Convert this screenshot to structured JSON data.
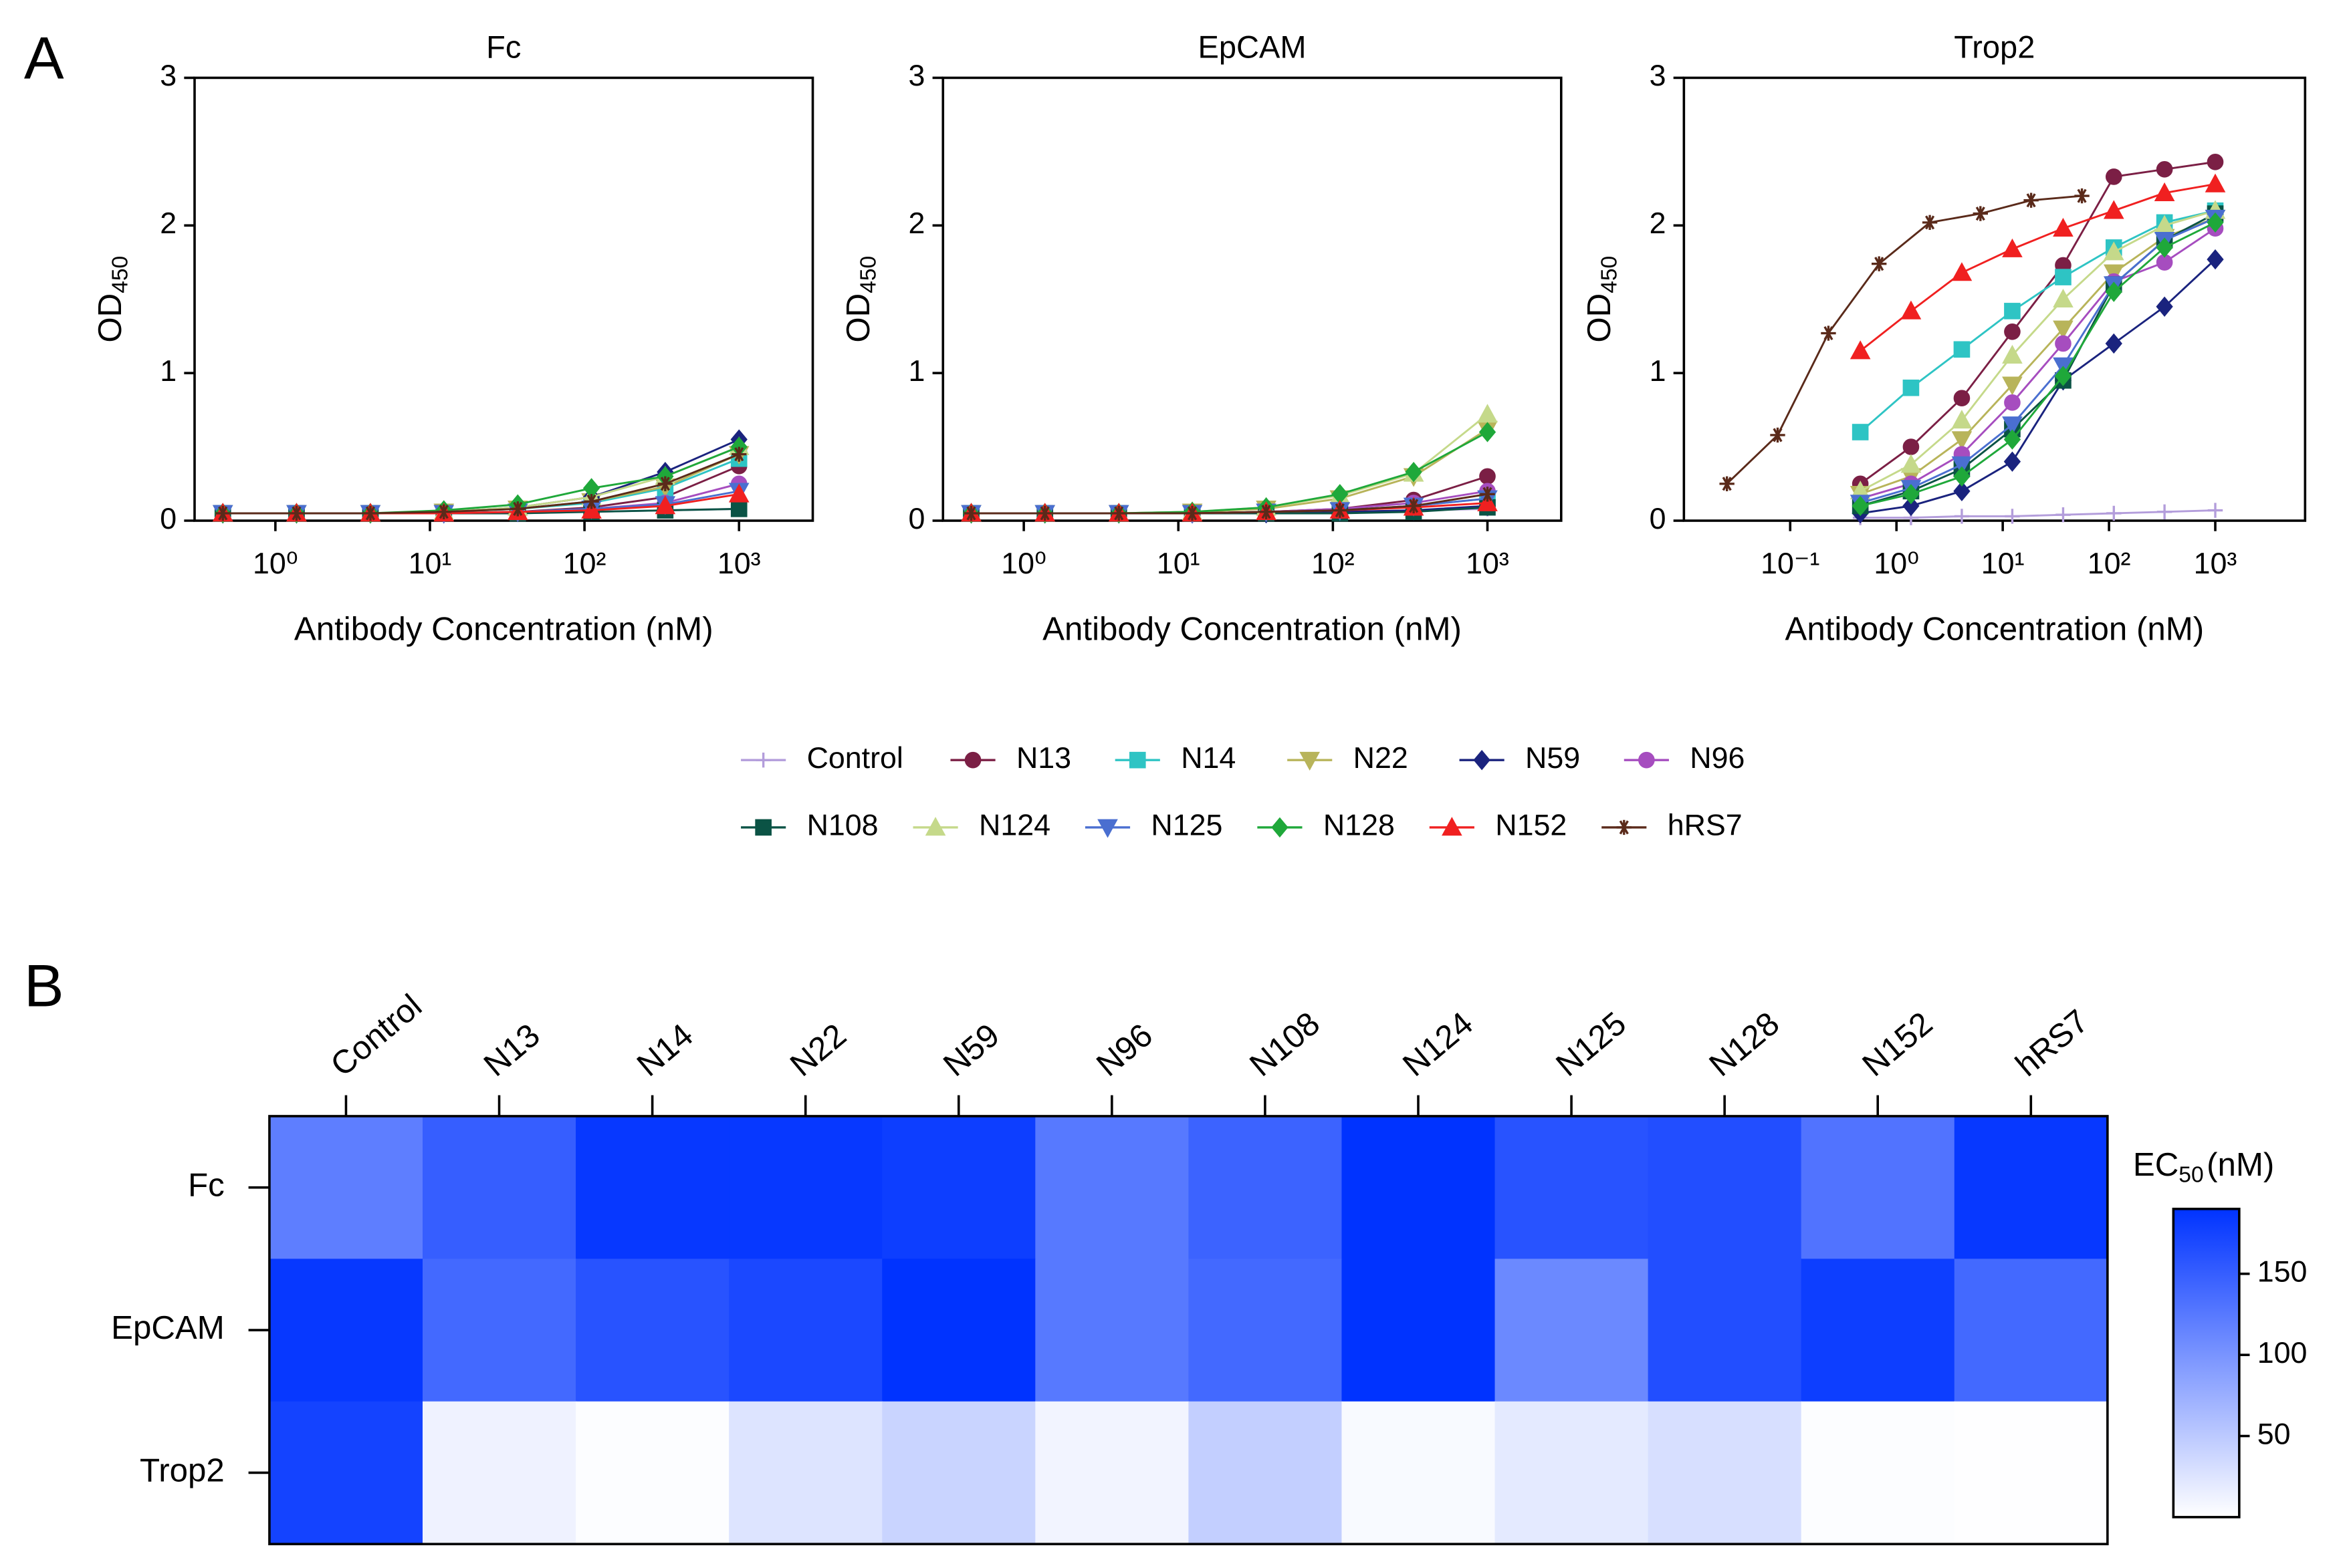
{
  "chart_data": [
    {
      "type": "line",
      "panel_label": "A",
      "title": "Fc",
      "x_label": "Antibody Concentration (nM)",
      "y_label": "OD",
      "y_label_sub": "450",
      "log_x": true,
      "x": [
        0.457,
        1.37,
        4.12,
        12.3,
        37,
        111,
        333,
        1000
      ],
      "xlim": [
        0.3,
        3000
      ],
      "xticks": [
        {
          "value": 1,
          "label": "10⁰"
        },
        {
          "value": 10,
          "label": "10¹"
        },
        {
          "value": 100,
          "label": "10²"
        },
        {
          "value": 1000,
          "label": "10³"
        }
      ],
      "ylim": [
        0,
        3
      ],
      "yticks": [
        0,
        1,
        2,
        3
      ],
      "series": [
        {
          "name": "Control",
          "color": "#b39ddb",
          "marker": "plus",
          "values": [
            0.05,
            0.05,
            0.05,
            0.05,
            0.05,
            0.06,
            0.07,
            0.08
          ]
        },
        {
          "name": "N13",
          "color": "#7b1f45",
          "marker": "circle",
          "values": [
            0.05,
            0.05,
            0.05,
            0.05,
            0.06,
            0.09,
            0.16,
            0.37
          ]
        },
        {
          "name": "N14",
          "color": "#2ec4c4",
          "marker": "square",
          "values": [
            0.05,
            0.05,
            0.05,
            0.06,
            0.08,
            0.12,
            0.22,
            0.42
          ]
        },
        {
          "name": "N22",
          "color": "#b8b45a",
          "marker": "triangle-down",
          "values": [
            0.05,
            0.05,
            0.05,
            0.06,
            0.08,
            0.13,
            0.23,
            0.45
          ]
        },
        {
          "name": "N59",
          "color": "#1a237e",
          "marker": "diamond",
          "values": [
            0.05,
            0.05,
            0.05,
            0.06,
            0.09,
            0.16,
            0.33,
            0.55
          ]
        },
        {
          "name": "N96",
          "color": "#a64dbf",
          "marker": "circle",
          "values": [
            0.05,
            0.05,
            0.05,
            0.05,
            0.06,
            0.08,
            0.12,
            0.25
          ]
        },
        {
          "name": "N108",
          "color": "#0b5345",
          "marker": "square",
          "values": [
            0.05,
            0.05,
            0.05,
            0.05,
            0.05,
            0.06,
            0.07,
            0.08
          ]
        },
        {
          "name": "N124",
          "color": "#c5d98a",
          "marker": "triangle-up",
          "values": [
            0.05,
            0.05,
            0.05,
            0.06,
            0.09,
            0.16,
            0.3,
            0.5
          ]
        },
        {
          "name": "N125",
          "color": "#4a6fd0",
          "marker": "triangle-down",
          "values": [
            0.05,
            0.05,
            0.05,
            0.05,
            0.06,
            0.08,
            0.11,
            0.2
          ]
        },
        {
          "name": "N128",
          "color": "#1fa83a",
          "marker": "diamond",
          "values": [
            0.05,
            0.05,
            0.05,
            0.07,
            0.11,
            0.22,
            0.3,
            0.5
          ]
        },
        {
          "name": "N152",
          "color": "#f02020",
          "marker": "triangle-up",
          "values": [
            0.05,
            0.05,
            0.05,
            0.05,
            0.06,
            0.07,
            0.1,
            0.18
          ]
        },
        {
          "name": "hRS7",
          "color": "#5a2a1a",
          "marker": "star",
          "values": [
            0.05,
            0.05,
            0.05,
            0.06,
            0.08,
            0.13,
            0.25,
            0.45
          ]
        }
      ]
    },
    {
      "type": "line",
      "title": "EpCAM",
      "x_label": "Antibody Concentration (nM)",
      "y_label": "OD",
      "y_label_sub": "450",
      "log_x": true,
      "x": [
        0.457,
        1.37,
        4.12,
        12.3,
        37,
        111,
        333,
        1000
      ],
      "xlim": [
        0.3,
        3000
      ],
      "xticks": [
        {
          "value": 1,
          "label": "10⁰"
        },
        {
          "value": 10,
          "label": "10¹"
        },
        {
          "value": 100,
          "label": "10²"
        },
        {
          "value": 1000,
          "label": "10³"
        }
      ],
      "ylim": [
        0,
        3
      ],
      "yticks": [
        0,
        1,
        2,
        3
      ],
      "series": [
        {
          "values": [
            0.05,
            0.05,
            0.05,
            0.05,
            0.05,
            0.06,
            0.07,
            0.08
          ]
        },
        {
          "values": [
            0.05,
            0.05,
            0.05,
            0.05,
            0.06,
            0.08,
            0.14,
            0.3
          ]
        },
        {
          "values": [
            0.05,
            0.05,
            0.05,
            0.05,
            0.06,
            0.07,
            0.1,
            0.15
          ]
        },
        {
          "values": [
            0.05,
            0.05,
            0.05,
            0.06,
            0.08,
            0.15,
            0.3,
            0.62
          ]
        },
        {
          "values": [
            0.05,
            0.05,
            0.05,
            0.05,
            0.05,
            0.06,
            0.07,
            0.1
          ]
        },
        {
          "values": [
            0.05,
            0.05,
            0.05,
            0.05,
            0.06,
            0.08,
            0.12,
            0.2
          ]
        },
        {
          "values": [
            0.05,
            0.05,
            0.05,
            0.05,
            0.05,
            0.05,
            0.06,
            0.09
          ]
        },
        {
          "values": [
            0.05,
            0.05,
            0.05,
            0.06,
            0.09,
            0.17,
            0.32,
            0.72
          ]
        },
        {
          "values": [
            0.05,
            0.05,
            0.05,
            0.05,
            0.06,
            0.07,
            0.1,
            0.15
          ]
        },
        {
          "values": [
            0.05,
            0.05,
            0.05,
            0.06,
            0.09,
            0.18,
            0.33,
            0.6
          ]
        },
        {
          "values": [
            0.05,
            0.05,
            0.05,
            0.05,
            0.06,
            0.07,
            0.09,
            0.12
          ]
        },
        {
          "values": [
            0.05,
            0.05,
            0.05,
            0.05,
            0.06,
            0.07,
            0.1,
            0.18
          ]
        }
      ]
    },
    {
      "type": "line",
      "title": "Trop2",
      "x_label": "Antibody Concentration (nM)",
      "y_label": "OD",
      "y_label_sub": "450",
      "log_x": true,
      "x": [
        0.457,
        1.37,
        4.12,
        12.3,
        37,
        111,
        333,
        1000
      ],
      "xlim": [
        0.01,
        7000
      ],
      "xticks": [
        {
          "value": 0.1,
          "label": "10⁻¹"
        },
        {
          "value": 1,
          "label": "10⁰"
        },
        {
          "value": 10,
          "label": "10¹"
        },
        {
          "value": 100,
          "label": "10²"
        },
        {
          "value": 1000,
          "label": "10³"
        }
      ],
      "ylim": [
        0,
        3
      ],
      "yticks": [
        0,
        1,
        2,
        3
      ],
      "series": [
        {
          "values": [
            0.02,
            0.02,
            0.03,
            0.03,
            0.04,
            0.05,
            0.06,
            0.07
          ]
        },
        {
          "values": [
            0.25,
            0.5,
            0.83,
            1.28,
            1.73,
            2.33,
            2.38,
            2.43
          ]
        },
        {
          "values": [
            0.6,
            0.9,
            1.16,
            1.42,
            1.65,
            1.85,
            2.02,
            2.1
          ]
        },
        {
          "values": [
            0.18,
            0.3,
            0.55,
            0.92,
            1.3,
            1.68,
            1.92,
            2.05
          ]
        },
        {
          "values": [
            0.05,
            0.1,
            0.2,
            0.4,
            0.95,
            1.2,
            1.45,
            1.77
          ]
        },
        {
          "values": [
            0.15,
            0.25,
            0.45,
            0.8,
            1.2,
            1.62,
            1.75,
            1.98
          ]
        },
        {
          "values": [
            0.1,
            0.2,
            0.35,
            0.62,
            0.95,
            1.6,
            1.9,
            2.08
          ]
        },
        {
          "values": [
            0.2,
            0.38,
            0.68,
            1.12,
            1.5,
            1.82,
            2.0,
            2.1
          ]
        },
        {
          "values": [
            0.12,
            0.22,
            0.38,
            0.65,
            1.05,
            1.6,
            1.9,
            2.05
          ]
        },
        {
          "values": [
            0.1,
            0.18,
            0.3,
            0.55,
            0.98,
            1.55,
            1.85,
            2.02
          ]
        },
        {
          "values": [
            1.15,
            1.42,
            1.68,
            1.84,
            1.98,
            2.1,
            2.22,
            2.28
          ]
        },
        {
          "x": [
            0.0254,
            0.0762,
            0.229,
            0.686,
            2.06,
            6.17,
            18.5,
            55.6
          ],
          "values": [
            0.25,
            0.58,
            1.27,
            1.74,
            2.02,
            2.08,
            2.17,
            2.2
          ]
        }
      ]
    },
    {
      "type": "heatmap",
      "panel_label": "B",
      "columns": [
        "Control",
        "N13",
        "N14",
        "N22",
        "N59",
        "N96",
        "N108",
        "N124",
        "N125",
        "N128",
        "N152",
        "hRS7"
      ],
      "rows": [
        "Fc",
        "EpCAM",
        "Trop2"
      ],
      "values": [
        [
          120,
          150,
          185,
          185,
          180,
          125,
          145,
          190,
          160,
          165,
          130,
          185
        ],
        [
          185,
          140,
          160,
          170,
          190,
          125,
          140,
          190,
          110,
          165,
          180,
          140
        ],
        [
          175,
          12,
          2,
          25,
          40,
          10,
          45,
          5,
          20,
          30,
          2,
          0.5
        ]
      ],
      "colorbar_title": "EC",
      "colorbar_title_sub": "50",
      "colorbar_unit": "(nM)",
      "zlim": [
        0,
        190
      ],
      "zticks": [
        50,
        100,
        150
      ],
      "colors": [
        "#ffffff",
        "#0033ff"
      ]
    }
  ]
}
